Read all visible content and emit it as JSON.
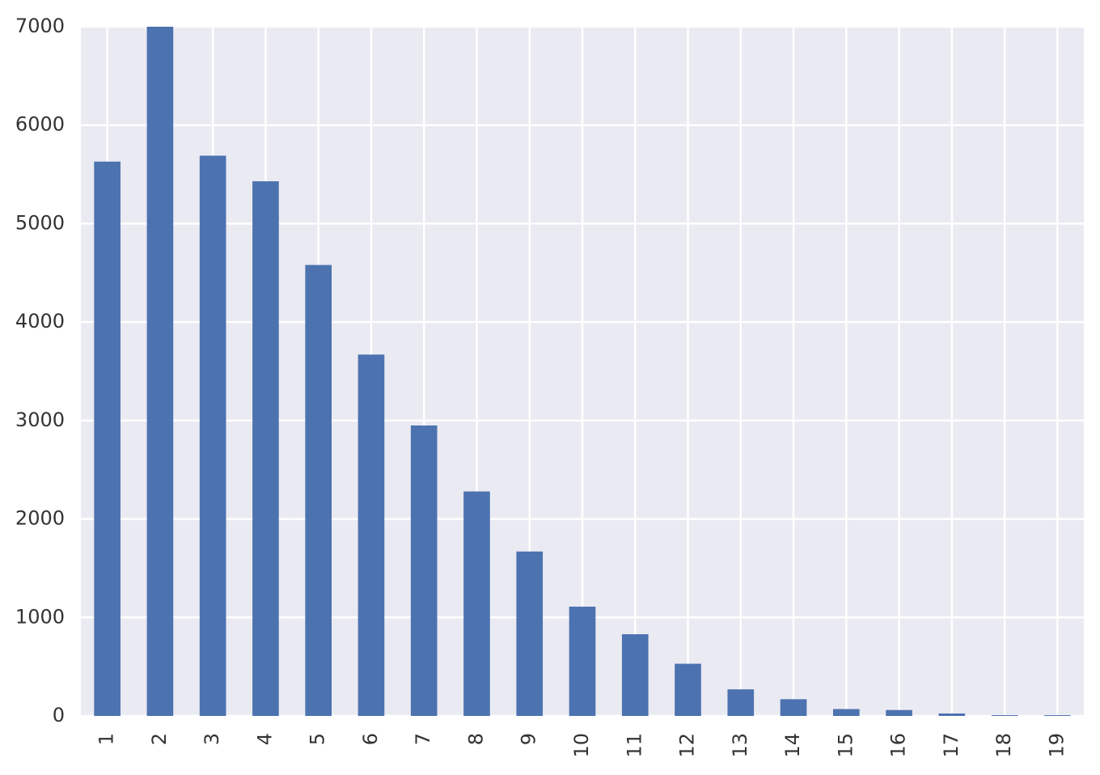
{
  "chart_data": {
    "type": "bar",
    "categories": [
      "1",
      "2",
      "3",
      "4",
      "5",
      "6",
      "7",
      "8",
      "9",
      "10",
      "11",
      "12",
      "13",
      "14",
      "15",
      "16",
      "17",
      "18",
      "19"
    ],
    "values": [
      5630,
      7000,
      5690,
      5430,
      4580,
      3670,
      2950,
      2280,
      1670,
      1110,
      830,
      530,
      270,
      170,
      70,
      60,
      25,
      8,
      8
    ],
    "color": "#4c72b0",
    "ylim": [
      0,
      7000
    ],
    "yticks": [
      0,
      1000,
      2000,
      3000,
      4000,
      5000,
      6000,
      7000
    ],
    "grid": true
  }
}
